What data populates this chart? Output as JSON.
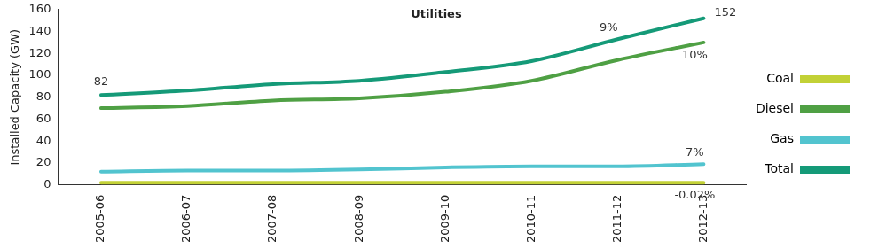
{
  "chart_data": {
    "type": "line",
    "title": "Utilities",
    "ylabel": "Installed Capacity (GW)",
    "categories": [
      "2005-06",
      "2006-07",
      "2007-08",
      "2008-09",
      "2009-10",
      "2010-11",
      "2011-12",
      "2012-13"
    ],
    "series": [
      {
        "name": "Coal",
        "color": "#c2d136",
        "values": [
          2,
          2,
          2,
          2,
          2,
          2,
          2,
          2
        ]
      },
      {
        "name": "Diesel",
        "color": "#4fa044",
        "values": [
          70,
          72,
          77,
          79,
          85,
          95,
          114,
          130
        ]
      },
      {
        "name": "Gas",
        "color": "#52c4cf",
        "values": [
          12,
          13,
          13,
          14,
          16,
          17,
          17,
          19
        ]
      },
      {
        "name": "Total",
        "color": "#159a78",
        "values": [
          82,
          86,
          92,
          95,
          103,
          113,
          133,
          152
        ],
        "value_labels": [
          "82",
          null,
          null,
          null,
          null,
          null,
          null,
          "152"
        ]
      }
    ],
    "ylim": [
      0,
      160
    ],
    "yticks": [
      0,
      20,
      40,
      60,
      80,
      100,
      120,
      140,
      160
    ],
    "grid": false,
    "legend": "right",
    "marker": "none",
    "line_style": "solid",
    "annotations": [
      {
        "text": "9%",
        "x": "2011-12",
        "y": 133
      },
      {
        "text": "10%",
        "x": "2012-13",
        "y": 130
      },
      {
        "text": "7%",
        "x": "2012-13",
        "y": 19
      },
      {
        "text": "-0.02%",
        "x": "2012-13",
        "y": 2
      }
    ]
  }
}
